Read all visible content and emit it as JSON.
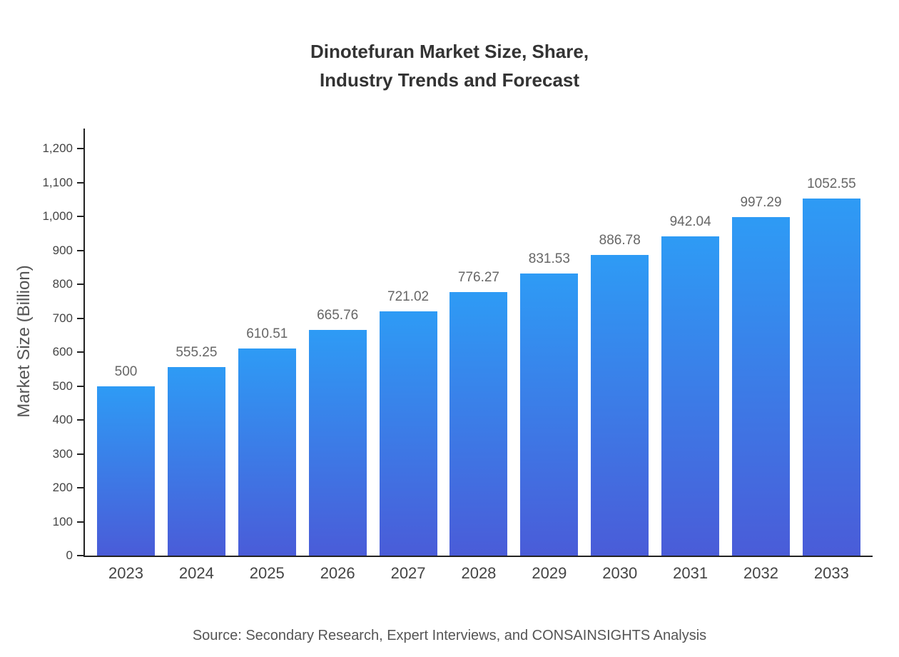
{
  "title": {
    "line1": "Dinotefuran Market Size, Share,",
    "line2": "Industry Trends and Forecast"
  },
  "source": "Source: Secondary Research, Expert Interviews, and CONSAINSIGHTS Analysis",
  "chart_data": {
    "type": "bar",
    "title": "Dinotefuran Market Size, Share, Industry Trends and Forecast",
    "categories": [
      "2023",
      "2024",
      "2025",
      "2026",
      "2027",
      "2028",
      "2029",
      "2030",
      "2031",
      "2032",
      "2033"
    ],
    "values": [
      500,
      555.25,
      610.51,
      665.76,
      721.02,
      776.27,
      831.53,
      886.78,
      942.04,
      997.29,
      1052.55
    ],
    "value_labels": [
      "500",
      "555.25",
      "610.51",
      "665.76",
      "721.02",
      "776.27",
      "831.53",
      "886.78",
      "942.04",
      "997.29",
      "1052.55"
    ],
    "xlabel": "",
    "ylabel": "Market Size (Billion)",
    "ylim": [
      0,
      1200
    ],
    "yticks": {
      "values": [
        0,
        100,
        200,
        300,
        400,
        500,
        600,
        700,
        800,
        900,
        1000,
        1100,
        1200
      ],
      "labels": [
        "0",
        "100",
        "200",
        "300",
        "400",
        "500",
        "600",
        "700",
        "800",
        "900",
        "1,000",
        "1,100",
        "1,200"
      ]
    },
    "grid": false,
    "legend": false,
    "bar_gradient": {
      "top": "#2E9BF5",
      "bottom": "#4A5CD8"
    },
    "colors": {
      "title": "#333333",
      "axis": "#222222",
      "tick_label": "#444444",
      "value_label": "#666666",
      "source": "#555555"
    }
  }
}
